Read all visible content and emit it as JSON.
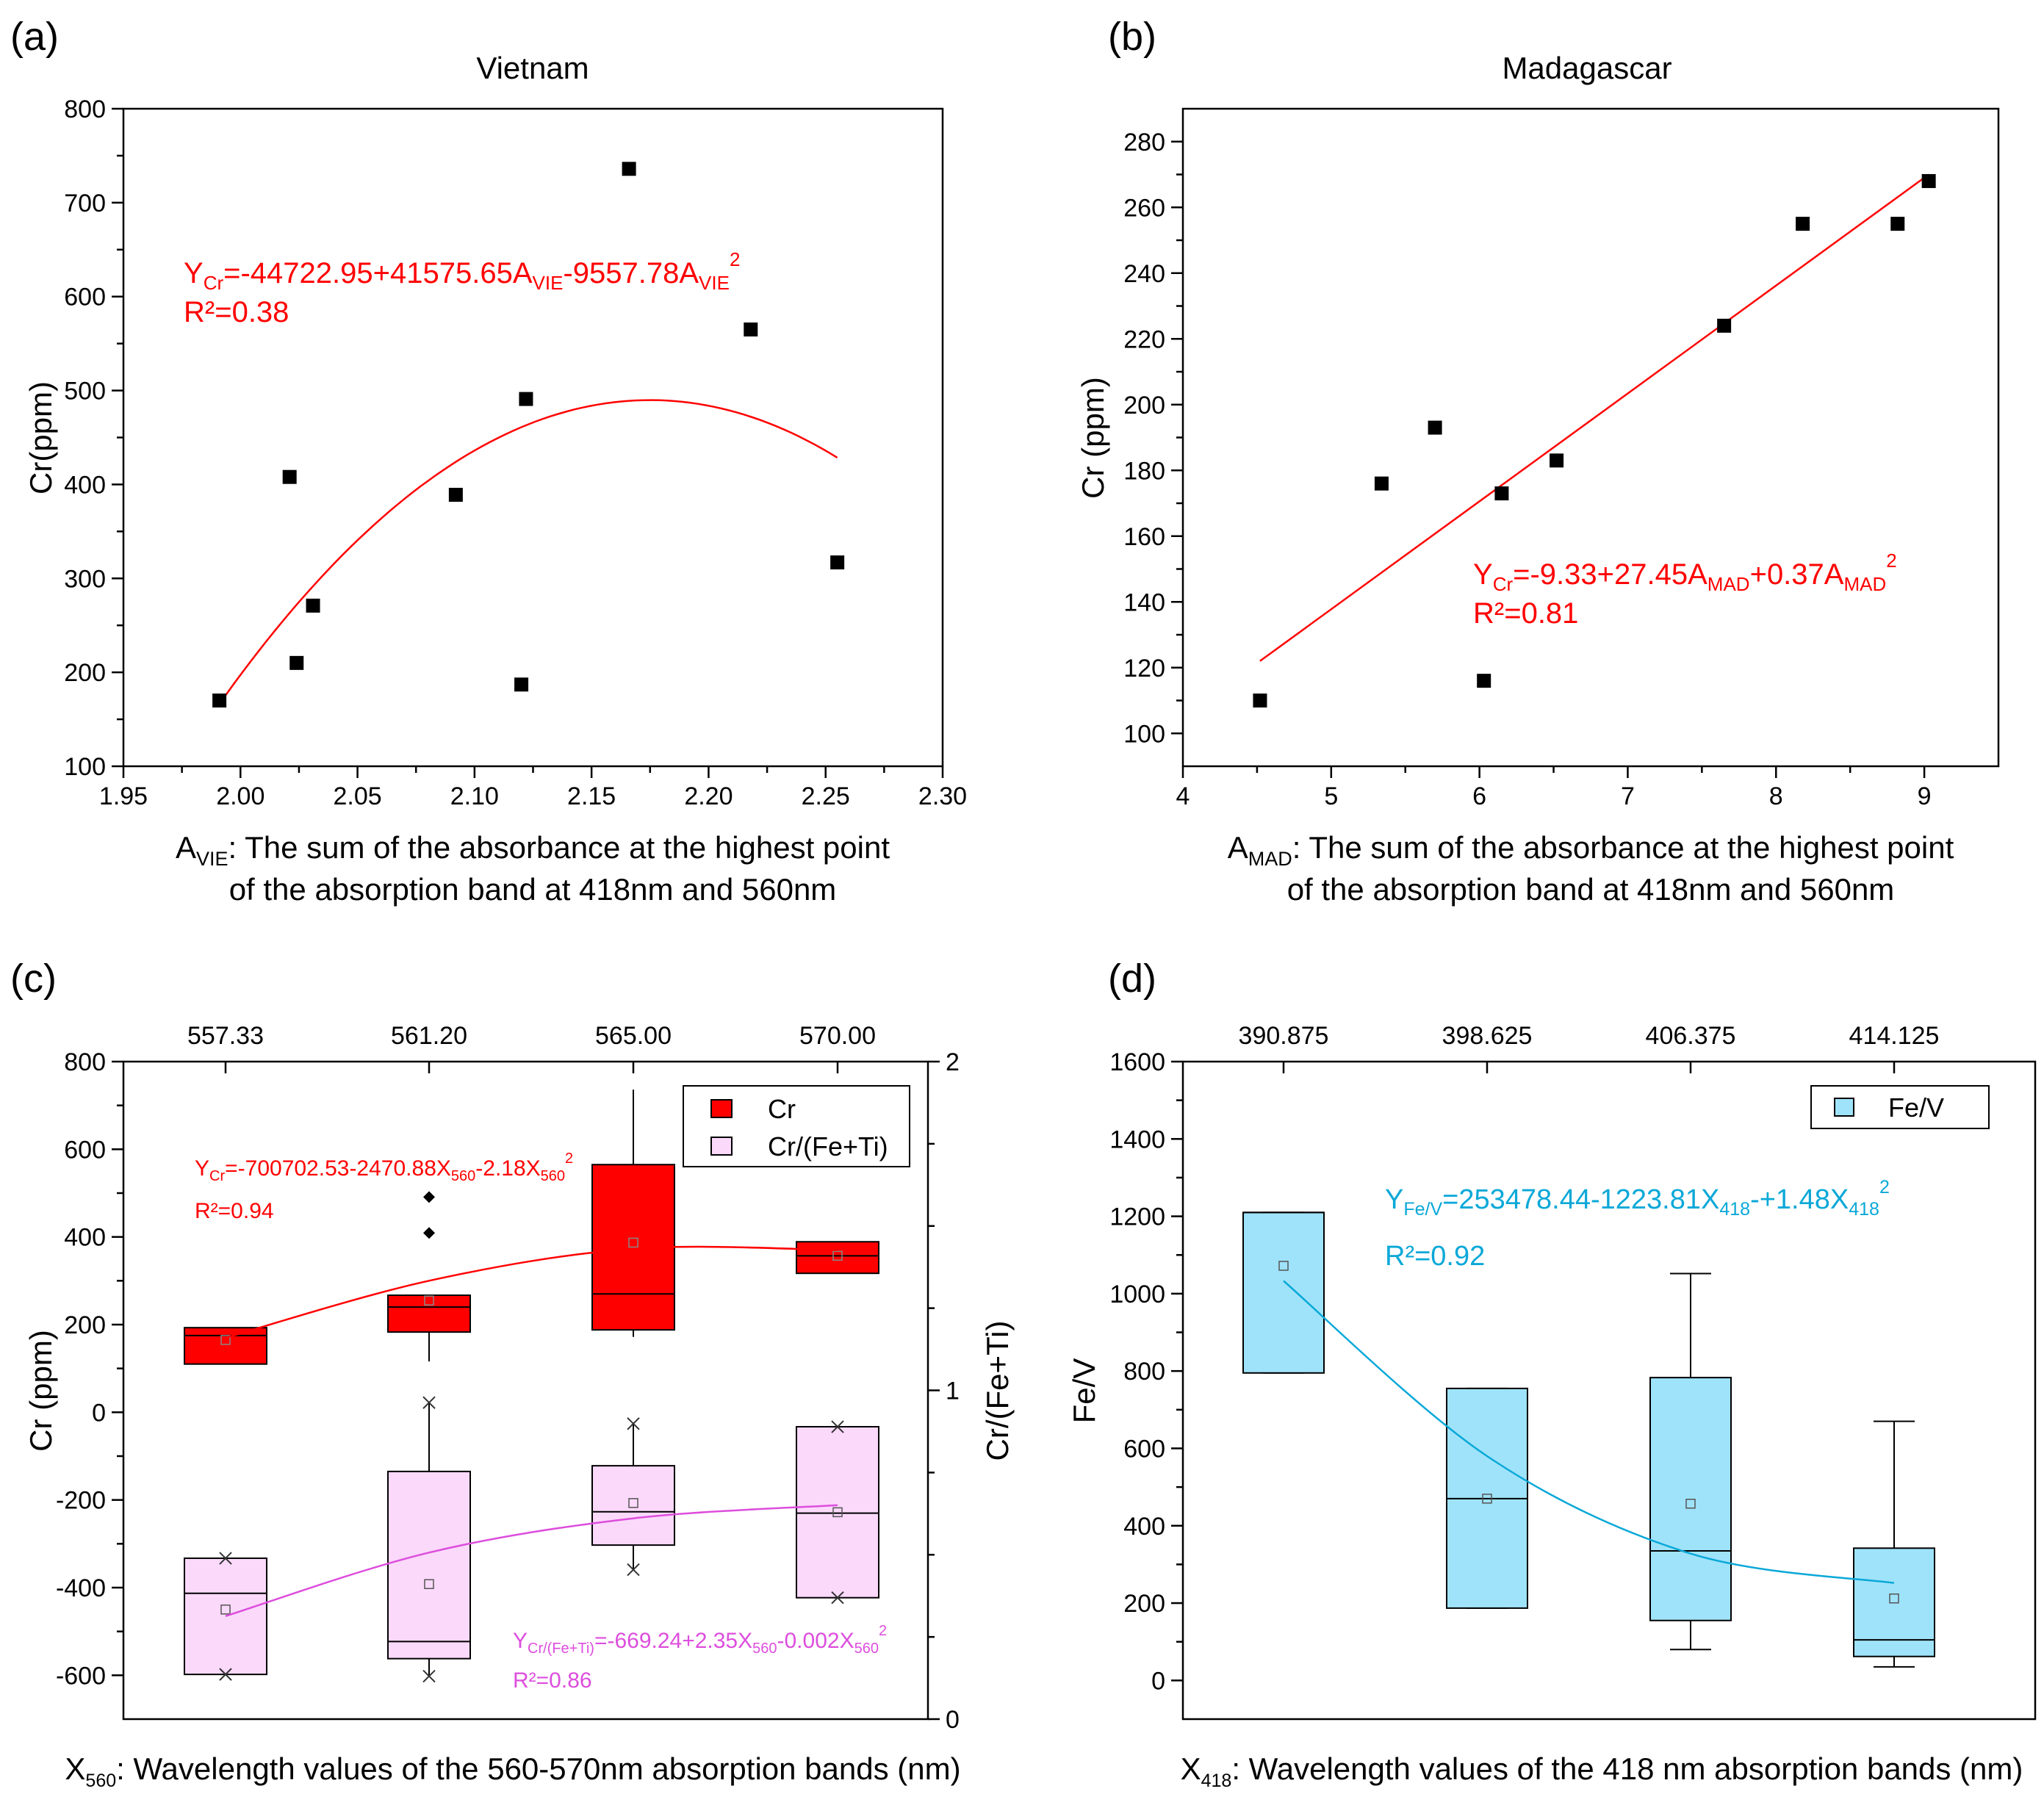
{
  "figure_letters": [
    "(a)",
    "(b)",
    "(c)",
    "(d)"
  ],
  "colors": {
    "red": "#ff0000",
    "magenta": "#dd4edd",
    "pink_fill": "#fbd9fb",
    "cyan": "#0aa8d8",
    "cyan_fill": "#9fe3fa",
    "black": "#000000"
  },
  "chart_data": [
    {
      "id": "a",
      "type": "scatter",
      "title": "Vietnam",
      "ylabel": "Cr(ppm)",
      "xlabel_var": "A",
      "xlabel_sub": "VIE",
      "xlabel_line1": ": The sum of the absorbance at the highest point",
      "xlabel_line2": "of the absorption band at 418nm and 560nm",
      "xlim": [
        1.95,
        2.3
      ],
      "ylim": [
        100,
        800
      ],
      "xticks": [
        "1.95",
        "2.00",
        "2.05",
        "2.10",
        "2.15",
        "2.20",
        "2.25",
        "2.30"
      ],
      "yticks": [
        "100",
        "200",
        "300",
        "400",
        "500",
        "600",
        "700",
        "800"
      ],
      "points": [
        [
          1.991,
          170
        ],
        [
          2.021,
          408
        ],
        [
          2.024,
          210
        ],
        [
          2.031,
          271
        ],
        [
          2.092,
          389
        ],
        [
          2.12,
          187
        ],
        [
          2.122,
          491
        ],
        [
          2.166,
          736
        ],
        [
          2.218,
          565
        ],
        [
          2.255,
          317
        ]
      ],
      "fit": {
        "a": -44722.95,
        "b": 41575.65,
        "c": -9557.78,
        "x_range": [
          1.991,
          2.255
        ]
      },
      "equation": {
        "y": "Y",
        "ysub": "Cr",
        "body1": "=-44722.95+41575.65A",
        "sub1": "VIE",
        "body2": "-9557.78A",
        "sub2": "VIE",
        "sup": "2"
      },
      "r2": "R²=0.38"
    },
    {
      "id": "b",
      "type": "scatter",
      "title": "Madagascar",
      "ylabel": "Cr (ppm)",
      "xlabel_var": "A",
      "xlabel_sub": "MAD",
      "xlabel_line1": ": The sum of the absorbance at the highest point",
      "xlabel_line2": "of the absorption band at 418nm and 560nm",
      "xlim": [
        4,
        9.5
      ],
      "ylim": [
        90,
        290
      ],
      "xticks": [
        "4",
        "5",
        "6",
        "7",
        "8",
        "9"
      ],
      "yticks": [
        "100",
        "120",
        "140",
        "160",
        "180",
        "200",
        "220",
        "240",
        "260",
        "280"
      ],
      "points": [
        [
          4.52,
          110
        ],
        [
          5.34,
          176
        ],
        [
          5.7,
          193
        ],
        [
          6.03,
          116
        ],
        [
          6.15,
          173
        ],
        [
          6.52,
          183
        ],
        [
          7.65,
          224
        ],
        [
          8.18,
          255
        ],
        [
          8.82,
          255
        ],
        [
          9.03,
          268
        ]
      ],
      "fit": {
        "a": -9.33,
        "b": 27.45,
        "c": 0.37,
        "x_range": [
          4.52,
          9.03
        ]
      },
      "equation": {
        "y": "Y",
        "ysub": "Cr",
        "body1": "=-9.33+27.45A",
        "sub1": "MAD",
        "body2": "+0.37A",
        "sub2": "MAD",
        "sup": "2"
      },
      "r2": "R²=0.81"
    },
    {
      "id": "c",
      "type": "box",
      "ylabel_left": "Cr (ppm)",
      "ylabel_right": "Cr/(Fe+Ti)",
      "xlabel_var": "X",
      "xlabel_sub": "560",
      "xlabel_rest": ": Wavelength values of the 560-570nm absorption bands (nm)",
      "categories": [
        "557.33",
        "561.20",
        "565.00",
        "570.00"
      ],
      "ylim_left": [
        -700,
        800
      ],
      "ylim_right": [
        0,
        2
      ],
      "yticks_left": [
        "-600",
        "-400",
        "-200",
        "0",
        "200",
        "400",
        "600",
        "800"
      ],
      "yticks_right": [
        "0",
        "1",
        "2"
      ],
      "legend": [
        "Cr",
        "Cr/(Fe+Ti)"
      ],
      "series": [
        {
          "name": "Cr",
          "axis": "left",
          "boxes": [
            {
              "q1": 110,
              "median": 175,
              "q3": 193,
              "whisker_low": 110,
              "whisker_high": 193,
              "mean": 165,
              "outliers": []
            },
            {
              "q1": 183,
              "median": 240,
              "q3": 267,
              "whisker_low": 116,
              "whisker_high": 267,
              "mean": 255,
              "outliers": [
                409,
                491
              ]
            },
            {
              "q1": 188,
              "median": 270,
              "q3": 565,
              "whisker_low": 172,
              "whisker_high": 736,
              "mean": 387,
              "outliers": []
            },
            {
              "q1": 317,
              "median": 357,
              "q3": 389,
              "whisker_low": 317,
              "whisker_high": 389,
              "mean": 357,
              "outliers": []
            }
          ],
          "fit_y": [
            170,
            300,
            373,
            370
          ]
        },
        {
          "name": "Cr/(Fe+Ti)",
          "axis": "left",
          "boxes": [
            {
              "q1": -598,
              "median": -413,
              "q3": -333,
              "whisker_low": -598,
              "whisker_high": -333,
              "mean": -450,
              "ends": [
                -598,
                -333
              ]
            },
            {
              "q1": -562,
              "median": -523,
              "q3": -135,
              "whisker_low": -602,
              "whisker_high": 22,
              "mean": -392,
              "ends": [
                -602,
                22
              ]
            },
            {
              "q1": -303,
              "median": -227,
              "q3": -122,
              "whisker_low": -359,
              "whisker_high": -26,
              "mean": -207,
              "ends": [
                -359,
                -26
              ]
            },
            {
              "q1": -423,
              "median": -230,
              "q3": -33,
              "whisker_low": -423,
              "whisker_high": -33,
              "mean": -228,
              "ends": [
                -423,
                -33
              ]
            }
          ],
          "fit_y": [
            -465,
            -320,
            -242,
            -212
          ]
        }
      ],
      "eq_cr": {
        "y": "Y",
        "ysub": "Cr",
        "body1": "=-700702.53-2470.88X",
        "sub1": "560",
        "body2": "-2.18X",
        "sub2": "560",
        "sup": "2"
      },
      "r2_cr": "R²=0.94",
      "eq_ratio": {
        "y": "Y",
        "ysub": "Cr/(Fe+Ti)",
        "body1": "=-669.24+2.35X",
        "sub1": "560",
        "body2": "-0.002X",
        "sub2": "560",
        "sup": "2"
      },
      "r2_ratio": "R²=0.86"
    },
    {
      "id": "d",
      "type": "box",
      "ylabel": "Fe/V",
      "xlabel_var": "X",
      "xlabel_sub": "418",
      "xlabel_rest": ": Wavelength values of the 418 nm absorption bands (nm)",
      "categories": [
        "390.875",
        "398.625",
        "406.375",
        "414.125"
      ],
      "ylim": [
        -100,
        1600
      ],
      "yticks": [
        "0",
        "200",
        "400",
        "600",
        "800",
        "1000",
        "1200",
        "1400",
        "1600"
      ],
      "legend": [
        "Fe/V"
      ],
      "boxes": [
        {
          "q1": 795,
          "median": 1210,
          "q3": 1210,
          "whisker_low": 795,
          "whisker_high": 1210,
          "mean": 1072
        },
        {
          "q1": 187,
          "median": 470,
          "q3": 755,
          "whisker_low": 187,
          "whisker_high": 755,
          "mean": 470
        },
        {
          "q1": 155,
          "median": 335,
          "q3": 783,
          "whisker_low": 80,
          "whisker_high": 1052,
          "mean": 457
        },
        {
          "q1": 62,
          "median": 105,
          "q3": 342,
          "whisker_low": 35,
          "whisker_high": 670,
          "mean": 212
        }
      ],
      "fit_y": [
        1033,
        580,
        328,
        252
      ],
      "equation": {
        "y": "Y",
        "ysub": "Fe/V",
        "body1": "=253478.44-1223.81X",
        "sub1": "418",
        "body2": "-+1.48X",
        "sub2": "418",
        "sup": "2"
      },
      "r2": "R²=0.92"
    }
  ]
}
